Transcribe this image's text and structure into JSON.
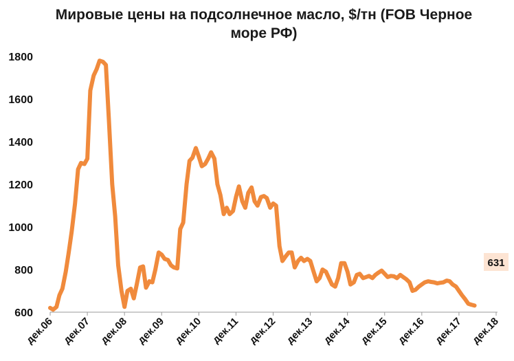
{
  "chart_data": {
    "type": "line",
    "title_lines": [
      "Мировые цены на подсолнечное масло, $/тн (FOB Черное",
      "море РФ)"
    ],
    "xlabel": "",
    "ylabel": "",
    "ylim": [
      600,
      1800
    ],
    "yticks": [
      "600",
      "800",
      "1000",
      "1200",
      "1400",
      "1600",
      "1800"
    ],
    "x_tick_labels": [
      "дек.06",
      "дек.07",
      "дек.08",
      "дек.09",
      "дек.10",
      "дек.11",
      "дек.12",
      "дек.13",
      "дек.14",
      "дек.15",
      "дек.16",
      "дек.17",
      "дек.18"
    ],
    "grid": false,
    "last_value_label": "631",
    "series": [
      {
        "color": "#f08a3c",
        "points": [
          [
            0.0,
            620
          ],
          [
            0.08,
            612
          ],
          [
            0.17,
            625
          ],
          [
            0.25,
            680
          ],
          [
            0.33,
            710
          ],
          [
            0.42,
            790
          ],
          [
            0.5,
            880
          ],
          [
            0.58,
            980
          ],
          [
            0.67,
            1110
          ],
          [
            0.75,
            1270
          ],
          [
            0.83,
            1300
          ],
          [
            0.92,
            1295
          ],
          [
            1.0,
            1320
          ],
          [
            1.08,
            1640
          ],
          [
            1.17,
            1710
          ],
          [
            1.25,
            1740
          ],
          [
            1.33,
            1780
          ],
          [
            1.42,
            1775
          ],
          [
            1.5,
            1760
          ],
          [
            1.58,
            1500
          ],
          [
            1.67,
            1200
          ],
          [
            1.75,
            1050
          ],
          [
            1.83,
            820
          ],
          [
            1.92,
            700
          ],
          [
            2.0,
            625
          ],
          [
            2.08,
            700
          ],
          [
            2.17,
            710
          ],
          [
            2.25,
            665
          ],
          [
            2.33,
            730
          ],
          [
            2.42,
            810
          ],
          [
            2.5,
            815
          ],
          [
            2.58,
            715
          ],
          [
            2.67,
            745
          ],
          [
            2.75,
            740
          ],
          [
            2.83,
            800
          ],
          [
            2.92,
            880
          ],
          [
            3.0,
            870
          ],
          [
            3.08,
            850
          ],
          [
            3.17,
            845
          ],
          [
            3.25,
            820
          ],
          [
            3.33,
            810
          ],
          [
            3.42,
            805
          ],
          [
            3.5,
            990
          ],
          [
            3.58,
            1020
          ],
          [
            3.67,
            1200
          ],
          [
            3.75,
            1310
          ],
          [
            3.83,
            1325
          ],
          [
            3.92,
            1370
          ],
          [
            4.0,
            1330
          ],
          [
            4.08,
            1285
          ],
          [
            4.17,
            1295
          ],
          [
            4.25,
            1320
          ],
          [
            4.33,
            1350
          ],
          [
            4.42,
            1320
          ],
          [
            4.5,
            1200
          ],
          [
            4.58,
            1150
          ],
          [
            4.67,
            1060
          ],
          [
            4.75,
            1090
          ],
          [
            4.83,
            1060
          ],
          [
            4.92,
            1075
          ],
          [
            5.0,
            1140
          ],
          [
            5.08,
            1190
          ],
          [
            5.17,
            1120
          ],
          [
            5.25,
            1090
          ],
          [
            5.33,
            1160
          ],
          [
            5.42,
            1185
          ],
          [
            5.5,
            1120
          ],
          [
            5.58,
            1100
          ],
          [
            5.67,
            1140
          ],
          [
            5.75,
            1145
          ],
          [
            5.83,
            1135
          ],
          [
            5.92,
            1090
          ],
          [
            6.0,
            1110
          ],
          [
            6.08,
            1100
          ],
          [
            6.17,
            910
          ],
          [
            6.25,
            840
          ],
          [
            6.33,
            860
          ],
          [
            6.42,
            880
          ],
          [
            6.5,
            880
          ],
          [
            6.58,
            810
          ],
          [
            6.67,
            840
          ],
          [
            6.75,
            855
          ],
          [
            6.83,
            840
          ],
          [
            6.92,
            850
          ],
          [
            7.0,
            840
          ],
          [
            7.08,
            795
          ],
          [
            7.17,
            745
          ],
          [
            7.25,
            760
          ],
          [
            7.33,
            800
          ],
          [
            7.42,
            790
          ],
          [
            7.5,
            760
          ],
          [
            7.58,
            730
          ],
          [
            7.67,
            720
          ],
          [
            7.75,
            760
          ],
          [
            7.83,
            830
          ],
          [
            7.92,
            830
          ],
          [
            8.0,
            790
          ],
          [
            8.08,
            730
          ],
          [
            8.17,
            740
          ],
          [
            8.25,
            775
          ],
          [
            8.33,
            780
          ],
          [
            8.42,
            760
          ],
          [
            8.5,
            765
          ],
          [
            8.58,
            770
          ],
          [
            8.67,
            760
          ],
          [
            8.75,
            775
          ],
          [
            8.83,
            785
          ],
          [
            8.92,
            795
          ],
          [
            9.0,
            780
          ],
          [
            9.08,
            765
          ],
          [
            9.17,
            770
          ],
          [
            9.25,
            768
          ],
          [
            9.33,
            760
          ],
          [
            9.42,
            775
          ],
          [
            9.5,
            765
          ],
          [
            9.58,
            755
          ],
          [
            9.67,
            740
          ],
          [
            9.75,
            700
          ],
          [
            9.83,
            705
          ],
          [
            9.92,
            720
          ],
          [
            10.0,
            730
          ],
          [
            10.08,
            740
          ],
          [
            10.17,
            745
          ],
          [
            10.25,
            742
          ],
          [
            10.33,
            740
          ],
          [
            10.42,
            735
          ],
          [
            10.5,
            738
          ],
          [
            10.58,
            740
          ],
          [
            10.67,
            748
          ],
          [
            10.75,
            745
          ],
          [
            10.83,
            730
          ],
          [
            10.92,
            720
          ],
          [
            11.0,
            700
          ],
          [
            11.08,
            680
          ],
          [
            11.17,
            660
          ],
          [
            11.25,
            640
          ],
          [
            11.33,
            635
          ],
          [
            11.42,
            631
          ]
        ]
      }
    ]
  }
}
